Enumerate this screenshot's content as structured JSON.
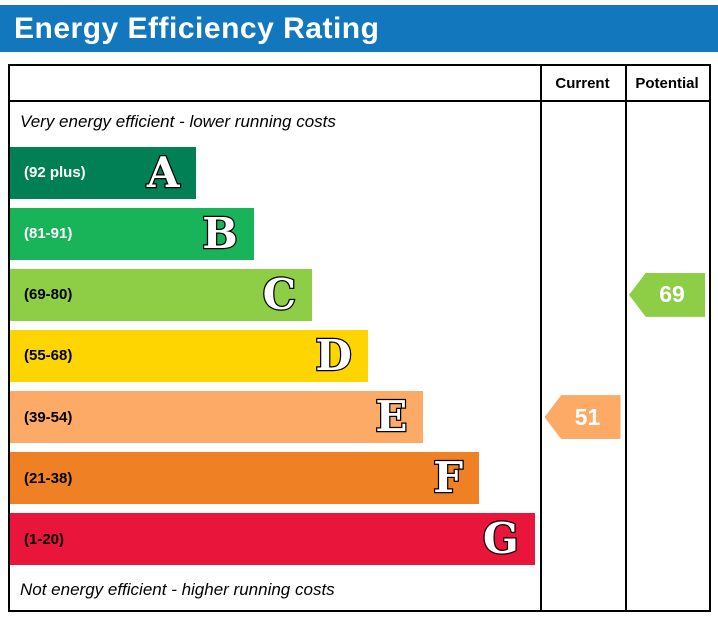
{
  "title": "Energy Efficiency Rating",
  "header": {
    "current": "Current",
    "potential": "Potential"
  },
  "notes": {
    "top": "Very energy efficient - lower running costs",
    "bottom": "Not energy efficient - higher running costs"
  },
  "bands": [
    {
      "letter": "A",
      "range": "(92 plus)",
      "color": "#008054",
      "width": "35%",
      "text": "#ffffff"
    },
    {
      "letter": "B",
      "range": "(81-91)",
      "color": "#19b459",
      "width": "46%",
      "text": "#ffffff"
    },
    {
      "letter": "C",
      "range": "(69-80)",
      "color": "#8dce46",
      "width": "57%",
      "text": "#000000"
    },
    {
      "letter": "D",
      "range": "(55-68)",
      "color": "#ffd500",
      "width": "67.5%",
      "text": "#000000"
    },
    {
      "letter": "E",
      "range": "(39-54)",
      "color": "#fcaa65",
      "width": "78%",
      "text": "#000000"
    },
    {
      "letter": "F",
      "range": "(21-38)",
      "color": "#ef8023",
      "width": "88.5%",
      "text": "#000000"
    },
    {
      "letter": "G",
      "range": "(1-20)",
      "color": "#e9153b",
      "width": "99%",
      "text": "#000000"
    }
  ],
  "current": {
    "value": "51",
    "color": "#fcaa65"
  },
  "potential": {
    "value": "69",
    "color": "#8dce46"
  },
  "colors": {
    "banner": "#1277bd",
    "banner_text": "#ffffff",
    "border": "#000000"
  },
  "chart_data": {
    "type": "bar",
    "title": "Energy Efficiency Rating",
    "categories": [
      "A (92 plus)",
      "B (81-91)",
      "C (69-80)",
      "D (55-68)",
      "E (39-54)",
      "F (21-38)",
      "G (1-20)"
    ],
    "band_colors": [
      "#008054",
      "#19b459",
      "#8dce46",
      "#ffd500",
      "#fcaa65",
      "#ef8023",
      "#e9153b"
    ],
    "scale": [
      1,
      100
    ],
    "markers": [
      {
        "name": "Current",
        "value": 51,
        "band": "E",
        "color": "#fcaa65"
      },
      {
        "name": "Potential",
        "value": 69,
        "band": "C",
        "color": "#8dce46"
      }
    ],
    "annotations": [
      "Very energy efficient - lower running costs",
      "Not energy efficient - higher running costs"
    ],
    "legend_position": "none",
    "grid": false
  }
}
